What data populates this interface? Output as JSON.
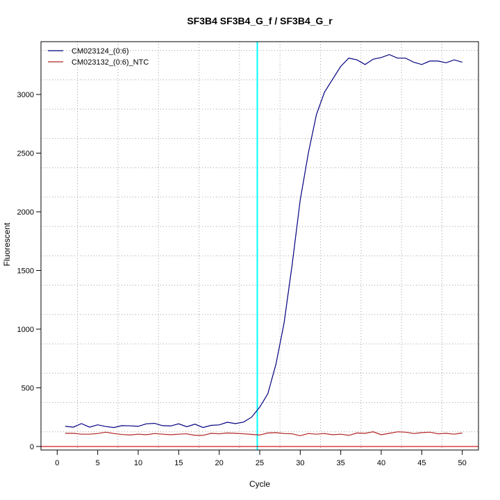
{
  "chart_data": {
    "type": "line",
    "title": "SF3B4  SF3B4_G_f / SF3B4_G_r",
    "xlabel": "Cycle",
    "ylabel": "Fluorescent",
    "xlim": [
      -2,
      52
    ],
    "ylim": [
      -30,
      3450
    ],
    "x_ticks": [
      0,
      5,
      10,
      15,
      20,
      25,
      30,
      35,
      40,
      45,
      50
    ],
    "y_ticks": [
      0,
      500,
      1000,
      1500,
      2000,
      2500,
      3000
    ],
    "grid": true,
    "legend_position": "top-left",
    "threshold": {
      "cycle": 24.7,
      "color": "#00ffff"
    },
    "baseline": {
      "value": 0,
      "color": "#cc0000"
    },
    "series": [
      {
        "name": "CM023124_(0:6)",
        "color": "#000080",
        "x": [
          1,
          2,
          3,
          4,
          5,
          6,
          7,
          8,
          9,
          10,
          11,
          12,
          13,
          14,
          15,
          16,
          17,
          18,
          19,
          20,
          21,
          22,
          23,
          24,
          25,
          26,
          27,
          28,
          29,
          30,
          31,
          32,
          33,
          34,
          35,
          36,
          37,
          38,
          39,
          40,
          41,
          42,
          43,
          44,
          45,
          46,
          47,
          48,
          49,
          50
        ],
        "values": [
          172,
          165,
          195,
          165,
          185,
          170,
          162,
          178,
          176,
          172,
          193,
          197,
          178,
          175,
          193,
          168,
          190,
          162,
          180,
          184,
          207,
          195,
          208,
          250,
          335,
          450,
          700,
          1050,
          1550,
          2100,
          2500,
          2830,
          3020,
          3130,
          3240,
          3310,
          3295,
          3255,
          3300,
          3315,
          3340,
          3310,
          3310,
          3275,
          3255,
          3285,
          3285,
          3270,
          3295,
          3275
        ]
      },
      {
        "name": "CM023132_(0:6)_NTC",
        "color": "#b22222",
        "x": [
          1,
          2,
          3,
          4,
          5,
          6,
          7,
          8,
          9,
          10,
          11,
          12,
          13,
          14,
          15,
          16,
          17,
          18,
          19,
          20,
          21,
          22,
          23,
          24,
          25,
          26,
          27,
          28,
          29,
          30,
          31,
          32,
          33,
          34,
          35,
          36,
          37,
          38,
          39,
          40,
          41,
          42,
          43,
          44,
          45,
          46,
          47,
          48,
          49,
          50
        ],
        "values": [
          112,
          112,
          105,
          105,
          110,
          122,
          110,
          102,
          98,
          105,
          100,
          110,
          105,
          100,
          105,
          108,
          95,
          95,
          112,
          108,
          115,
          112,
          108,
          103,
          98,
          115,
          118,
          110,
          108,
          92,
          110,
          105,
          110,
          100,
          105,
          95,
          115,
          112,
          125,
          100,
          112,
          125,
          122,
          110,
          118,
          122,
          108,
          112,
          105,
          115
        ]
      }
    ]
  }
}
